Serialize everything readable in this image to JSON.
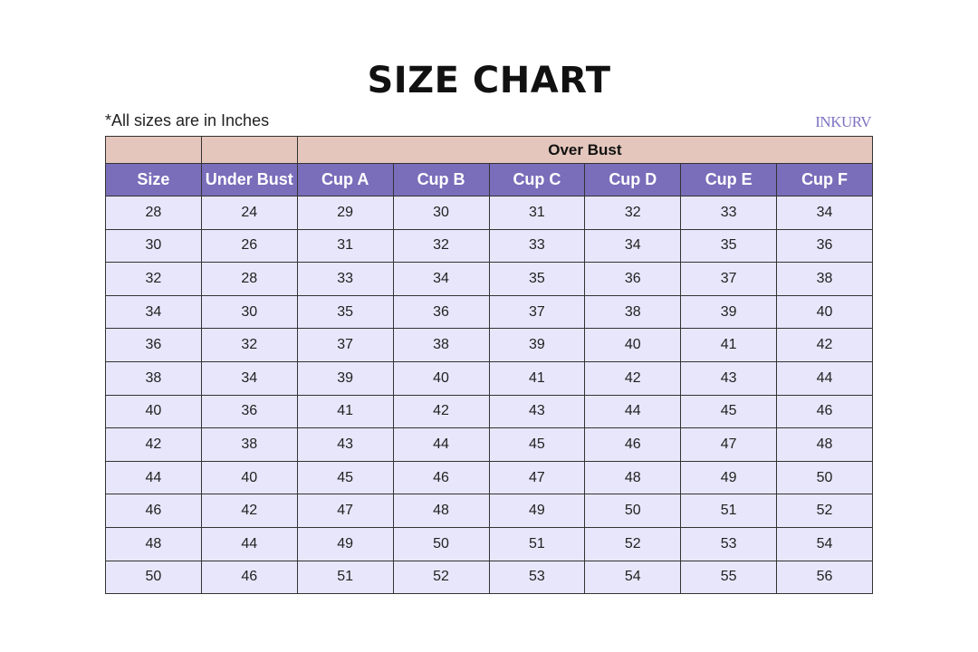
{
  "title": "SIZE CHART",
  "note": "*All sizes are in Inches",
  "logo": "INKURV",
  "colors": {
    "group_header": "#e4c6bc",
    "header": "#7a6dba",
    "row": "#e8e6fb"
  },
  "group_header": "Over Bust",
  "columns": [
    "Size",
    "Under Bust",
    "Cup A",
    "Cup B",
    "Cup C",
    "Cup D",
    "Cup E",
    "Cup F"
  ],
  "rows": [
    [
      "28",
      "24",
      "29",
      "30",
      "31",
      "32",
      "33",
      "34"
    ],
    [
      "30",
      "26",
      "31",
      "32",
      "33",
      "34",
      "35",
      "36"
    ],
    [
      "32",
      "28",
      "33",
      "34",
      "35",
      "36",
      "37",
      "38"
    ],
    [
      "34",
      "30",
      "35",
      "36",
      "37",
      "38",
      "39",
      "40"
    ],
    [
      "36",
      "32",
      "37",
      "38",
      "39",
      "40",
      "41",
      "42"
    ],
    [
      "38",
      "34",
      "39",
      "40",
      "41",
      "42",
      "43",
      "44"
    ],
    [
      "40",
      "36",
      "41",
      "42",
      "43",
      "44",
      "45",
      "46"
    ],
    [
      "42",
      "38",
      "43",
      "44",
      "45",
      "46",
      "47",
      "48"
    ],
    [
      "44",
      "40",
      "45",
      "46",
      "47",
      "48",
      "49",
      "50"
    ],
    [
      "46",
      "42",
      "47",
      "48",
      "49",
      "50",
      "51",
      "52"
    ],
    [
      "48",
      "44",
      "49",
      "50",
      "51",
      "52",
      "53",
      "54"
    ],
    [
      "50",
      "46",
      "51",
      "52",
      "53",
      "54",
      "55",
      "56"
    ]
  ]
}
